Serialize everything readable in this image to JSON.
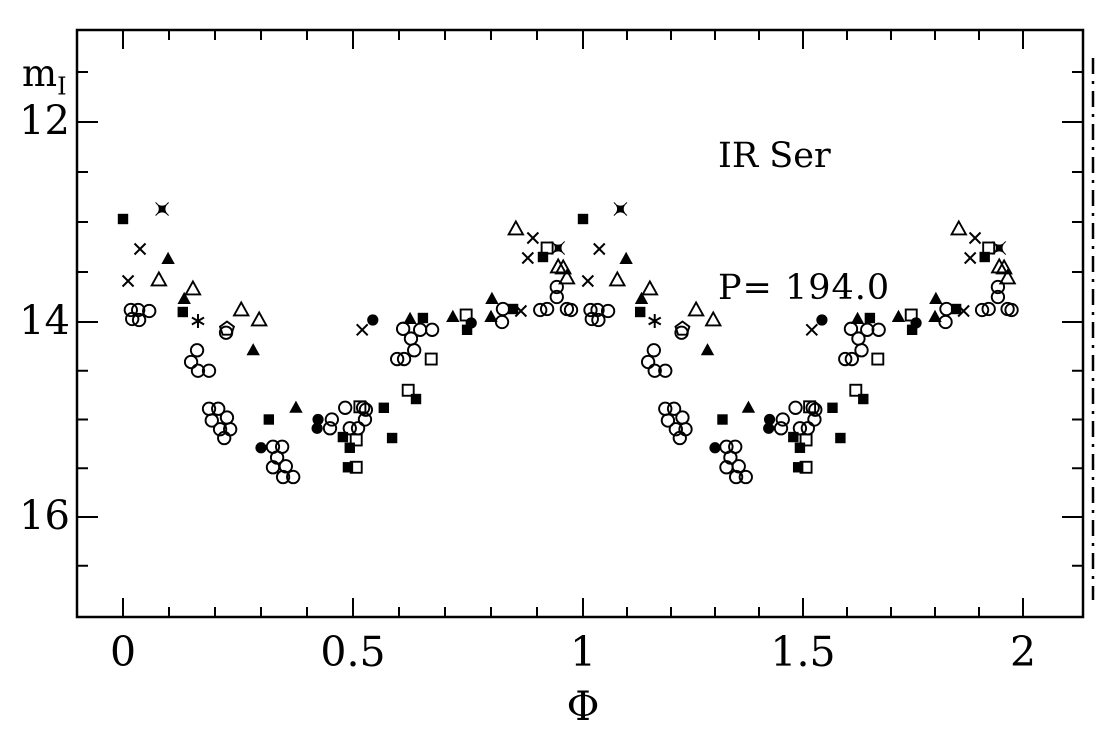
{
  "chart_data": {
    "type": "scatter",
    "title": "IR Ser",
    "period_label": "P= 194.0",
    "xlabel": "Φ",
    "ylabel_base": "m",
    "ylabel_subscript": "I",
    "grid": false,
    "legend": "none",
    "color": "#000000",
    "background": "#ffffff",
    "x_axis": {
      "range": [
        0,
        2
      ],
      "major_ticks": [
        0,
        0.5,
        1,
        1.5,
        2
      ],
      "tick_labels": [
        "0",
        "0.5",
        "1",
        "1.5",
        "2"
      ],
      "minor_step": 0.1
    },
    "y_axis": {
      "inverted": true,
      "display_range": [
        11.1,
        17.0
      ],
      "major_ticks": [
        12,
        14,
        16
      ],
      "tick_labels": [
        "12",
        "14",
        "16"
      ],
      "minor_step": 0.5,
      "tick_span": [
        11.5,
        16.5
      ]
    },
    "duplication_note": "phase-folded: every point is plotted at phase and phase+1",
    "series": [
      {
        "name": "open-circle",
        "marker": "open-circle",
        "points": [
          [
            0.017,
            13.88
          ],
          [
            0.033,
            13.88
          ],
          [
            0.057,
            13.89
          ],
          [
            0.02,
            13.97
          ],
          [
            0.035,
            13.98
          ],
          [
            0.224,
            14.11
          ],
          [
            0.161,
            14.29
          ],
          [
            0.148,
            14.41
          ],
          [
            0.163,
            14.5
          ],
          [
            0.187,
            14.5
          ],
          [
            0.187,
            14.89
          ],
          [
            0.207,
            14.89
          ],
          [
            0.193,
            15.01
          ],
          [
            0.226,
            14.98
          ],
          [
            0.211,
            15.1
          ],
          [
            0.233,
            15.1
          ],
          [
            0.22,
            15.19
          ],
          [
            0.326,
            15.28
          ],
          [
            0.346,
            15.28
          ],
          [
            0.335,
            15.39
          ],
          [
            0.326,
            15.49
          ],
          [
            0.354,
            15.48
          ],
          [
            0.348,
            15.59
          ],
          [
            0.37,
            15.59
          ],
          [
            0.454,
            15.0
          ],
          [
            0.45,
            15.09
          ],
          [
            0.483,
            14.88
          ],
          [
            0.493,
            15.09
          ],
          [
            0.511,
            15.09
          ],
          [
            0.522,
            14.88
          ],
          [
            0.528,
            14.9
          ],
          [
            0.526,
            15.0
          ],
          [
            0.596,
            14.38
          ],
          [
            0.611,
            14.38
          ],
          [
            0.609,
            14.07
          ],
          [
            0.626,
            14.17
          ],
          [
            0.633,
            14.29
          ],
          [
            0.646,
            14.08
          ],
          [
            0.672,
            14.08
          ],
          [
            0.826,
            13.87
          ],
          [
            0.824,
            14.0
          ],
          [
            0.907,
            13.88
          ],
          [
            0.922,
            13.87
          ],
          [
            0.943,
            13.65
          ],
          [
            0.943,
            13.75
          ],
          [
            0.965,
            13.87
          ],
          [
            0.974,
            13.88
          ]
        ]
      },
      {
        "name": "filled-circle",
        "marker": "filled-circle",
        "points": [
          [
            0.3,
            15.29
          ],
          [
            0.422,
            15.09
          ],
          [
            0.424,
            15.0
          ],
          [
            0.543,
            13.98
          ],
          [
            0.757,
            14.01
          ]
        ]
      },
      {
        "name": "open-square",
        "marker": "open-square",
        "points": [
          [
            0.515,
            14.87
          ],
          [
            0.507,
            15.21
          ],
          [
            0.507,
            15.49
          ],
          [
            0.62,
            14.7
          ],
          [
            0.67,
            14.38
          ],
          [
            0.746,
            13.93
          ],
          [
            0.922,
            13.26
          ]
        ]
      },
      {
        "name": "filled-square",
        "marker": "filled-square",
        "points": [
          [
            0.0,
            12.97
          ],
          [
            0.13,
            13.9
          ],
          [
            0.317,
            15.0
          ],
          [
            0.478,
            15.18
          ],
          [
            0.493,
            15.29
          ],
          [
            0.489,
            15.49
          ],
          [
            0.567,
            14.88
          ],
          [
            0.585,
            15.19
          ],
          [
            0.637,
            14.79
          ],
          [
            0.652,
            13.96
          ],
          [
            0.748,
            14.08
          ],
          [
            0.848,
            13.87
          ],
          [
            0.913,
            13.35
          ]
        ]
      },
      {
        "name": "open-triangle",
        "marker": "open-triangle",
        "points": [
          [
            0.078,
            13.58
          ],
          [
            0.152,
            13.67
          ],
          [
            0.257,
            13.88
          ],
          [
            0.296,
            13.98
          ],
          [
            0.854,
            13.07
          ],
          [
            0.946,
            13.45
          ],
          [
            0.957,
            13.46
          ],
          [
            0.965,
            13.56
          ]
        ]
      },
      {
        "name": "filled-triangle",
        "marker": "filled-triangle",
        "points": [
          [
            0.098,
            13.37
          ],
          [
            0.133,
            13.77
          ],
          [
            0.283,
            14.29
          ],
          [
            0.376,
            14.88
          ],
          [
            0.624,
            13.97
          ],
          [
            0.717,
            13.95
          ],
          [
            0.802,
            13.77
          ],
          [
            0.8,
            13.95
          ]
        ]
      },
      {
        "name": "cross",
        "marker": "cross",
        "points": [
          [
            0.011,
            13.59
          ],
          [
            0.037,
            13.27
          ],
          [
            0.52,
            14.08
          ],
          [
            0.865,
            13.89
          ],
          [
            0.88,
            13.36
          ],
          [
            0.891,
            13.16
          ]
        ]
      },
      {
        "name": "asterisk",
        "marker": "asterisk",
        "points": [
          [
            0.163,
            13.99
          ]
        ]
      },
      {
        "name": "pentagon",
        "marker": "pentagon",
        "points": [
          [
            0.226,
            14.07
          ]
        ]
      },
      {
        "name": "four-star",
        "marker": "four-star",
        "points": [
          [
            0.085,
            12.87
          ],
          [
            0.946,
            13.26
          ]
        ]
      }
    ]
  }
}
